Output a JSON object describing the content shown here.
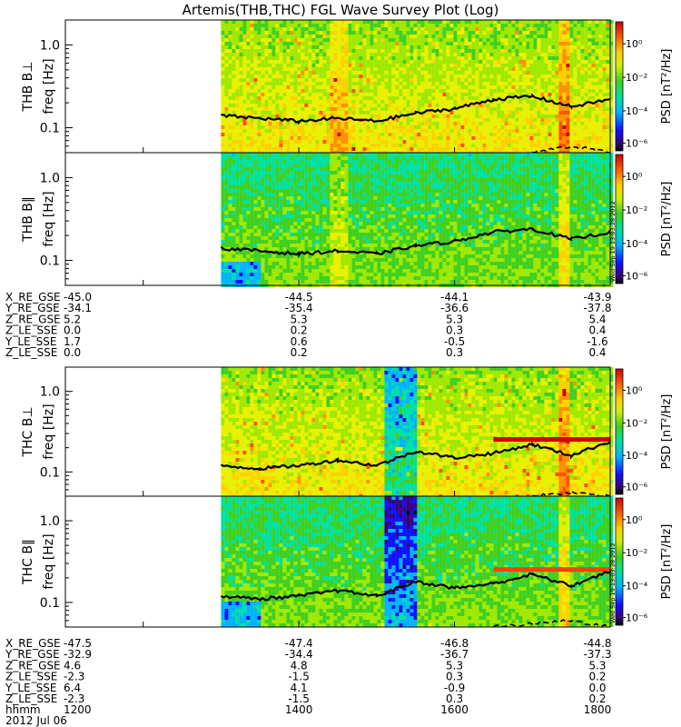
{
  "title": "Artemis(THB,THC) FGL Wave Survey Plot (Log)",
  "colorbar_label": "PSD [nT²/Hz]",
  "colorbar_ticks": [
    "10⁰",
    "10⁻²",
    "10⁻⁴",
    "10⁻⁶"
  ],
  "stamp": "Wed Sep 19 13:03:28 2012",
  "freq_label": "freq [Hz]",
  "freq_ticks": [
    "1.0",
    "0.1"
  ],
  "colors": {
    "line": "#000000",
    "background": "#ffffff"
  },
  "chart_data": [
    {
      "type": "heatmap",
      "panel": "THB B⊥",
      "ylabel": "THB B⊥",
      "yscale": "log",
      "ylim": [
        0.05,
        2.0
      ],
      "xlim_hhmm": [
        1100,
        1800
      ],
      "data_start_hhmm": 1300,
      "colorscale": "log PSD 1e-7 to 1e1 (rainbow)",
      "series": [
        {
          "name": "",
          "style": "solid",
          "x": [
            1300,
            1330,
            1400,
            1430,
            1500,
            1530,
            1600,
            1630,
            1700,
            1730,
            1800
          ],
          "y": [
            0.14,
            0.13,
            0.12,
            0.13,
            0.12,
            0.15,
            0.17,
            0.22,
            0.24,
            0.18,
            0.22
          ]
        },
        {
          "name": "",
          "style": "dashed",
          "x": [
            1700,
            1730,
            1800
          ],
          "y": [
            0.05,
            0.06,
            0.05
          ]
        }
      ]
    },
    {
      "type": "heatmap",
      "panel": "THB B∥",
      "ylabel": "THB B∥",
      "yscale": "log",
      "ylim": [
        0.05,
        2.0
      ],
      "xlim_hhmm": [
        1100,
        1800
      ],
      "data_start_hhmm": 1300,
      "series": [
        {
          "name": "",
          "style": "solid",
          "x": [
            1300,
            1330,
            1400,
            1430,
            1500,
            1530,
            1600,
            1630,
            1700,
            1730,
            1800
          ],
          "y": [
            0.14,
            0.13,
            0.12,
            0.13,
            0.12,
            0.15,
            0.17,
            0.22,
            0.24,
            0.18,
            0.22
          ]
        }
      ]
    },
    {
      "type": "heatmap",
      "panel": "THC B⊥",
      "ylabel": "THC B⊥",
      "yscale": "log",
      "ylim": [
        0.05,
        2.0
      ],
      "xlim_hhmm": [
        1100,
        1800
      ],
      "data_start_hhmm": 1300,
      "series": [
        {
          "name": "",
          "style": "solid",
          "x": [
            1300,
            1330,
            1400,
            1430,
            1500,
            1530,
            1600,
            1630,
            1700,
            1730,
            1800
          ],
          "y": [
            0.12,
            0.11,
            0.12,
            0.14,
            0.12,
            0.18,
            0.15,
            0.17,
            0.22,
            0.16,
            0.24
          ]
        },
        {
          "name": "",
          "style": "dashed",
          "x": [
            1700,
            1730,
            1800
          ],
          "y": [
            0.05,
            0.055,
            0.05
          ]
        }
      ]
    },
    {
      "type": "heatmap",
      "panel": "THC B∥",
      "ylabel": "THC B∥",
      "yscale": "log",
      "ylim": [
        0.05,
        2.0
      ],
      "xlim_hhmm": [
        1100,
        1800
      ],
      "data_start_hhmm": 1300,
      "series": [
        {
          "name": "",
          "style": "solid",
          "x": [
            1300,
            1330,
            1400,
            1430,
            1500,
            1530,
            1600,
            1630,
            1700,
            1730,
            1800
          ],
          "y": [
            0.12,
            0.11,
            0.12,
            0.14,
            0.12,
            0.18,
            0.15,
            0.17,
            0.22,
            0.16,
            0.24
          ]
        },
        {
          "name": "",
          "style": "dashed",
          "x": [
            1630,
            1700,
            1730,
            1800
          ],
          "y": [
            0.05,
            0.055,
            0.06,
            0.05
          ]
        }
      ]
    }
  ],
  "ephemeris_thb": {
    "rows": [
      {
        "label": "X_RE_GSE",
        "values": [
          "-45.0",
          "-44.5",
          "-44.1",
          "-43.9"
        ]
      },
      {
        "label": "Y_RE_GSE",
        "values": [
          "-34.1",
          "-35.4",
          "-36.6",
          "-37.8"
        ]
      },
      {
        "label": "Z_RE_GSE",
        "values": [
          "5.2",
          "5.3",
          "5.3",
          "5.4"
        ]
      },
      {
        "label": "Z_LE_SSE",
        "values": [
          "0.0",
          "0.2",
          "0.3",
          "0.4"
        ]
      },
      {
        "label": "Y_LE_SSE",
        "values": [
          "1.7",
          "0.6",
          "-0.5",
          "-1.6"
        ]
      },
      {
        "label": "Z_LE_SSE",
        "values": [
          "0.0",
          "0.2",
          "0.3",
          "0.4"
        ]
      }
    ]
  },
  "ephemeris_thc": {
    "rows": [
      {
        "label": "X_RE_GSE",
        "values": [
          "-47.5",
          "-47.4",
          "-46.8",
          "-44.8"
        ]
      },
      {
        "label": "Y_RE_GSE",
        "values": [
          "-32.9",
          "-34.4",
          "-36.7",
          "-37.3"
        ]
      },
      {
        "label": "Z_RE_GSE",
        "values": [
          "4.6",
          "4.8",
          "5.3",
          "5.3"
        ]
      },
      {
        "label": "Z_LE_SSE",
        "values": [
          "-2.3",
          "-1.5",
          "0.3",
          "0.2"
        ]
      },
      {
        "label": "Y_LE_SSE",
        "values": [
          "6.4",
          "4.1",
          "-0.9",
          "0.0"
        ]
      },
      {
        "label": "Z_LE_SSE",
        "values": [
          "-2.3",
          "-1.5",
          "0.3",
          "0.2"
        ]
      },
      {
        "label": "hhmm",
        "values": [
          "1200",
          "1400",
          "1600",
          "1800"
        ]
      }
    ]
  },
  "date": "2012 Jul 06"
}
